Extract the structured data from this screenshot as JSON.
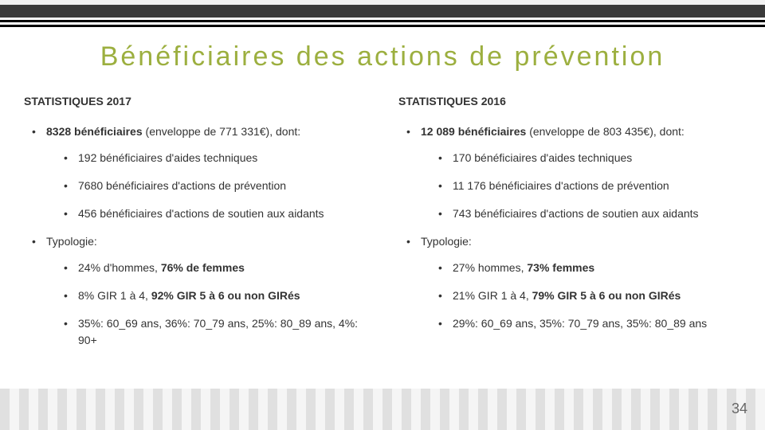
{
  "title": "Bénéficiaires des actions de prévention",
  "page_number": "34",
  "colors": {
    "accent": "#9caf3f",
    "text": "#333333",
    "dark_bar": "#3a3a3a",
    "stripe_light": "#f5f5f5",
    "stripe_dark": "#e0e0e0"
  },
  "left": {
    "heading": "STATISTIQUES 2017",
    "main_line_a": "8328 bénéficiaires",
    "main_line_b": " (enveloppe de 771 331€), dont:",
    "sub1": "192 bénéficiaires d'aides techniques",
    "sub2": "7680 bénéficiaires d'actions de prévention",
    "sub3": "456 bénéficiaires d'actions de soutien aux aidants",
    "typology": "Typologie:",
    "t1_a": "24% d'hommes, ",
    "t1_b": "76% de femmes",
    "t2_a": "8% GIR 1 à 4,   ",
    "t2_b": "92% GIR 5 à 6 ou non GIRés",
    "t3": "35%: 60_69 ans, 36%: 70_79 ans, 25%: 80_89 ans, 4%: 90+"
  },
  "right": {
    "heading": "STATISTIQUES 2016",
    "main_line_a": "12 089 bénéficiaires",
    "main_line_b": " (enveloppe de 803 435€), dont:",
    "sub1": "170 bénéficiaires d'aides techniques",
    "sub2": "11 176 bénéficiaires d'actions de prévention",
    "sub3": "743 bénéficiaires d'actions de soutien aux aidants",
    "typology": "Typologie:",
    "t1_a": "27% hommes, ",
    "t1_b": "73% femmes",
    "t2_a": "21% GIR 1 à 4, ",
    "t2_b": "79% GIR 5 à 6 ou non GIRés",
    "t3": "29%: 60_69 ans, 35%: 70_79 ans, 35%: 80_89 ans"
  }
}
